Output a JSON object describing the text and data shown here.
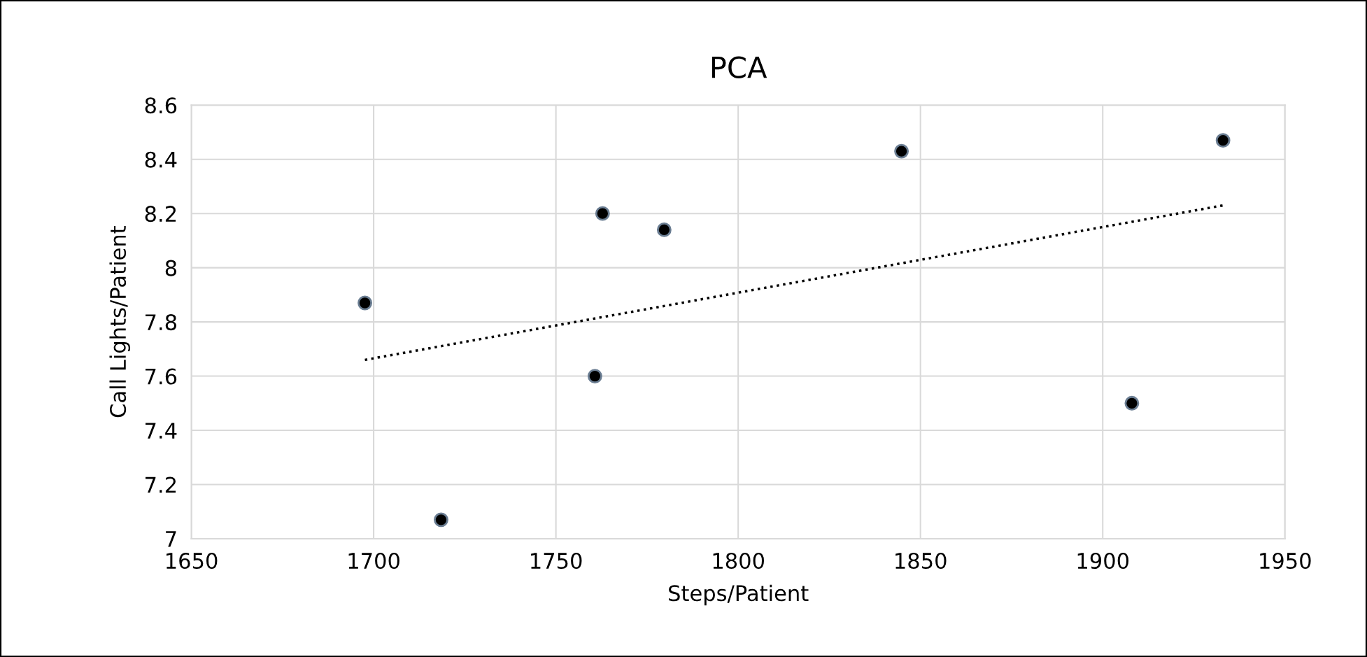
{
  "chart_data": {
    "type": "scatter",
    "title": "PCA",
    "xlabel": "Steps/Patient",
    "ylabel": "Call Lights/Patient",
    "xlim": [
      1650,
      1950
    ],
    "xticks": [
      1650,
      1700,
      1750,
      1800,
      1850,
      1900,
      1950
    ],
    "ylim": [
      7,
      8.6
    ],
    "yticks": [
      {
        "value": 7,
        "label": "7"
      },
      7.2,
      7.4,
      7.6,
      7.8,
      {
        "value": 8,
        "label": "8"
      },
      8.2,
      8.4,
      8.6
    ],
    "grid": true,
    "marker": "circle",
    "series": [
      {
        "color": "#000000",
        "x": [
          1697.6,
          1718.5,
          1760.7,
          1762.8,
          1779.7,
          1844.8,
          1908,
          1933
        ],
        "values": [
          7.87,
          7.07,
          7.6,
          8.2,
          8.14,
          8.43,
          7.5,
          8.47
        ]
      },
      {
        "type": "line",
        "color": "#000000",
        "line_style": "dotted",
        "marker": "none",
        "x": [
          1697.6,
          1933
        ],
        "values": [
          7.66,
          8.23
        ]
      }
    ]
  }
}
